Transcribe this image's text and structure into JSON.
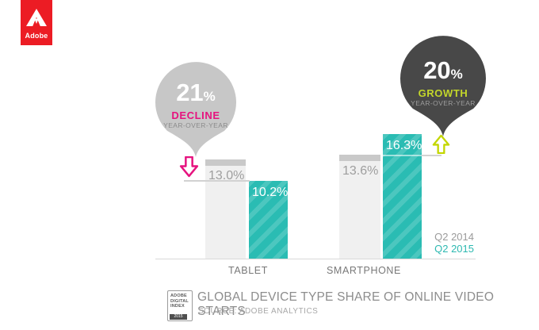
{
  "brand": {
    "name": "Adobe",
    "logo_color": "#ec1c24"
  },
  "chart_data": {
    "type": "bar",
    "title": "GLOBAL DEVICE TYPE SHARE OF ONLINE VIDEO STARTS",
    "source": "SOURCE: ADOBE ANALYTICS",
    "categories": [
      "TABLET",
      "SMARTPHONE"
    ],
    "series": [
      {
        "name": "Q2 2014",
        "values": [
          13.0,
          13.6
        ],
        "labels": [
          "13.0%",
          "13.6%"
        ],
        "color": "#f0f0f0",
        "cap_color": "#c9c9c9"
      },
      {
        "name": "Q2 2015",
        "values": [
          10.2,
          16.3
        ],
        "labels": [
          "10.2%",
          "16.3%"
        ],
        "color": "#2abcb3",
        "hatch": "diagonal"
      }
    ],
    "pixels_per_percent": 9.7,
    "legend": [
      {
        "label": "Q2 2014",
        "color": "#9b9b9b"
      },
      {
        "label": "Q2 2015",
        "color": "#2db9b1"
      }
    ],
    "annotations": [
      {
        "id": "decline",
        "value": "21",
        "unit": "%",
        "label": "DECLINE",
        "sublabel": "YEAR-OVER-YEAR",
        "balloon_color": "#c7c7c7",
        "label_color": "#e6137f",
        "arrow": "down",
        "arrow_color": "#e6137f",
        "target": "TABLET"
      },
      {
        "id": "growth",
        "value": "20",
        "unit": "%",
        "label": "GROWTH",
        "sublabel": "YEAR-OVER-YEAR",
        "balloon_color": "#484848",
        "label_color": "#c3d62a",
        "arrow": "up",
        "arrow_color": "#c3d600",
        "target": "SMARTPHONE"
      }
    ]
  },
  "footer": {
    "badge": {
      "lines": [
        "ADOBE",
        "DIGITAL",
        "INDEX"
      ],
      "year": "2015"
    },
    "title": "GLOBAL DEVICE TYPE SHARE OF ONLINE VIDEO STARTS",
    "source": "SOURCE: ADOBE ANALYTICS"
  }
}
